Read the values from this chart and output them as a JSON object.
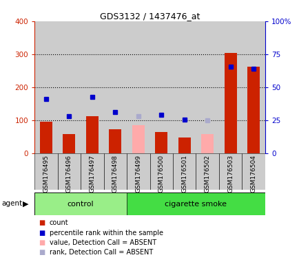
{
  "title": "GDS3132 / 1437476_at",
  "samples": [
    "GSM176495",
    "GSM176496",
    "GSM176497",
    "GSM176498",
    "GSM176499",
    "GSM176500",
    "GSM176501",
    "GSM176502",
    "GSM176503",
    "GSM176504"
  ],
  "groups": [
    "control",
    "control",
    "control",
    "control",
    "cigarette smoke",
    "cigarette smoke",
    "cigarette smoke",
    "cigarette smoke",
    "cigarette smoke",
    "cigarette smoke"
  ],
  "count_values": [
    95,
    57,
    112,
    72,
    null,
    63,
    48,
    null,
    303,
    262
  ],
  "count_absent": [
    null,
    null,
    null,
    null,
    85,
    null,
    null,
    57,
    null,
    null
  ],
  "percentile_values": [
    163,
    112,
    170,
    124,
    null,
    117,
    101,
    null,
    262,
    255
  ],
  "percentile_absent": [
    null,
    null,
    null,
    null,
    112,
    null,
    null,
    99,
    null,
    null
  ],
  "ylim_left": [
    0,
    400
  ],
  "ylim_right": [
    0,
    100
  ],
  "yticks_left": [
    0,
    100,
    200,
    300,
    400
  ],
  "yticks_right": [
    0,
    25,
    50,
    75,
    100
  ],
  "yticklabels_right": [
    "0",
    "25",
    "50",
    "75",
    "100%"
  ],
  "color_count": "#cc2200",
  "color_percentile": "#0000cc",
  "color_count_absent": "#ffaaaa",
  "color_percentile_absent": "#aaaacc",
  "color_control_bg": "#99ee88",
  "color_smoke_bg": "#44dd44",
  "color_axis_left": "#cc2200",
  "color_axis_right": "#0000cc",
  "plot_bg": "#ffffff",
  "grid_color": "#000000",
  "sample_bg": "#cccccc",
  "fig_width": 4.35,
  "fig_height": 3.84
}
